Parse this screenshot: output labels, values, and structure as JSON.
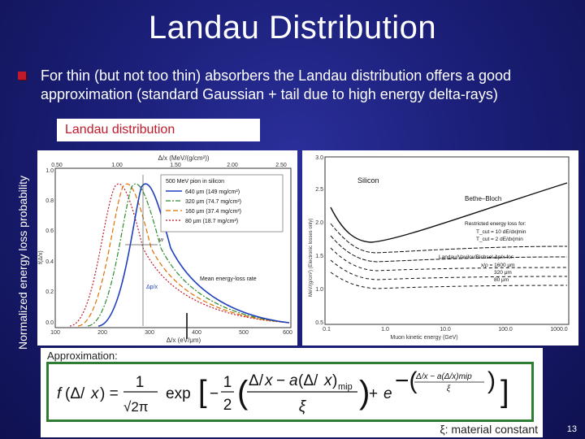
{
  "slide": {
    "title": "Landau Distribution",
    "bullet": "For thin (but not too thin) absorbers the Landau distribution offers a good approximation (standard Gaussian + tail due to high energy delta-rays)",
    "tag": "Landau distribution",
    "ylabel": "Normalized energy loss probability",
    "page_number": "13",
    "accent_color": "#c0192b",
    "background_color": "#1b1f78"
  },
  "left_plot": {
    "top_axis_label": "Δ/x (MeV/(g/cm²))",
    "top_ticks": [
      "0.50",
      "1.00",
      "1.50",
      "2.00",
      "2.50"
    ],
    "bottom_axis_label": "Δ/x (eV/μm)",
    "bottom_ticks": [
      "100",
      "200",
      "300",
      "400",
      "500",
      "600"
    ],
    "y_axis_label": "f(Δ/x)",
    "y_ticks": [
      "0.0",
      "0.2",
      "0.4",
      "0.6",
      "0.8",
      "1.0"
    ],
    "legend_title": "500 MeV pion in silicon",
    "legend": [
      {
        "label": "640 μm (149 mg/cm²)",
        "color": "#1f3fbf"
      },
      {
        "label": "320 μm (74.7 mg/cm²)",
        "color": "#2e8b2e"
      },
      {
        "label": "160 μm (37.4 mg/cm²)",
        "color": "#e07000"
      },
      {
        "label": "80 μm (18.7 mg/cm²)",
        "color": "#c0192b"
      }
    ],
    "annotation_w": "w",
    "annotation_dp": "Δp/x",
    "annotation_mean": "Mean energy-loss rate"
  },
  "right_plot": {
    "y_axis_label": "MeV/(g/cm²) (Electronic losses only)",
    "y_ticks": [
      "0.5",
      "1.0",
      "1.5",
      "2.0",
      "2.5",
      "3.0"
    ],
    "x_axis_label": "Muon kinetic energy (GeV)",
    "x_ticks": [
      "0.1",
      "1.0",
      "10.0",
      "100.0",
      "1000.0"
    ],
    "material": "Silicon",
    "bethe_bloch": "Bethe–Bloch",
    "restricted_title": "Restricted energy loss for:",
    "restricted_1": "T_cut = 10 dE/dx|min",
    "restricted_2": "T_cut = 2 dE/dx|min",
    "landau_title": "Landau/Vavilov/Bichsel Δp/x for:",
    "landau_1": "x/ρ = 1600 μm",
    "landau_2": "320 μm",
    "landau_3": "80 μm"
  },
  "approximation": {
    "heading": "Approximation:",
    "xi_note": "ξ: material constant"
  }
}
